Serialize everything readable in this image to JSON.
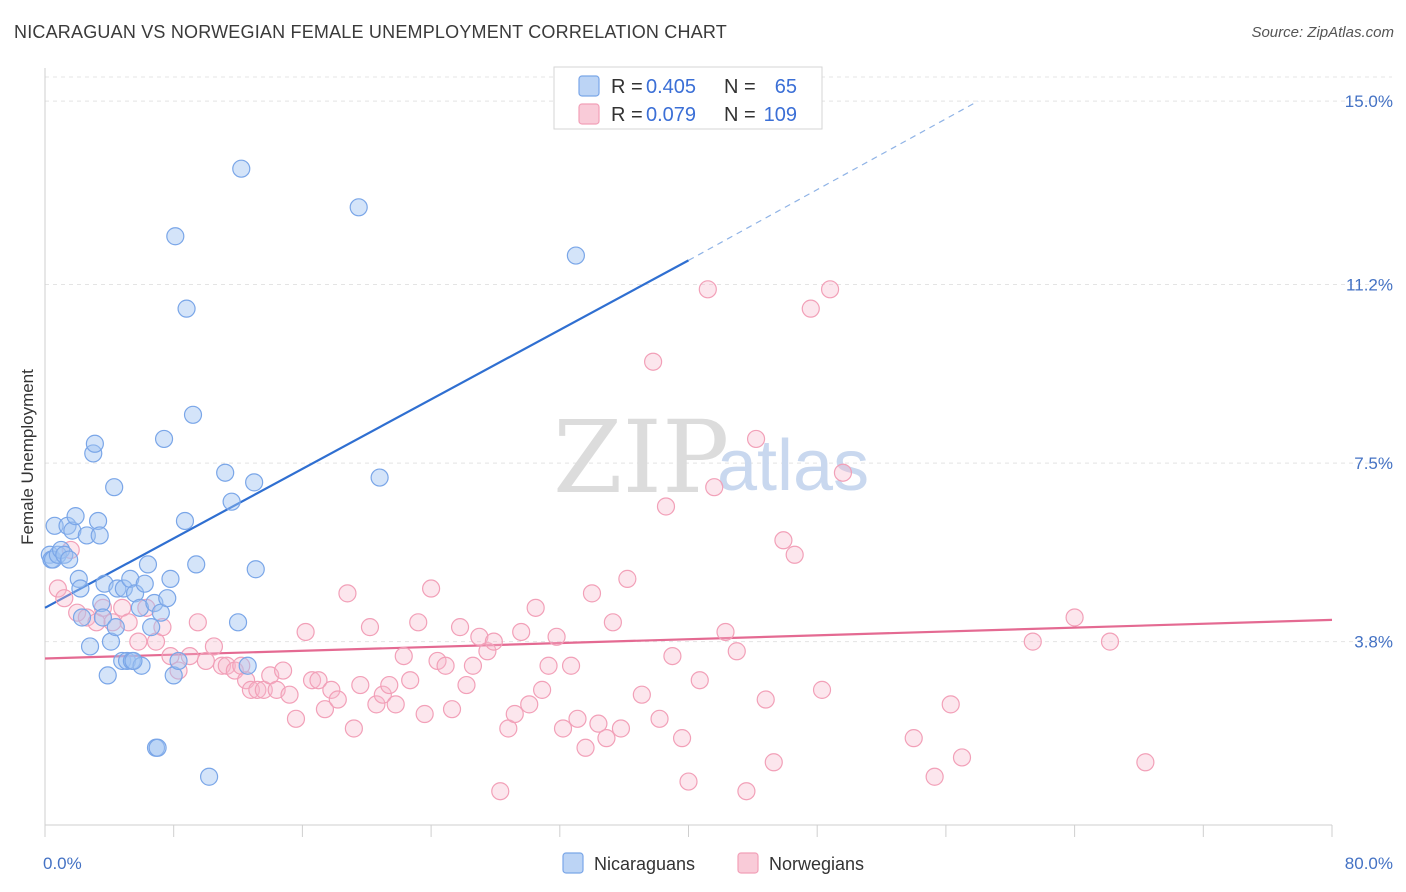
{
  "header": {
    "title": "NICARAGUAN VS NORWEGIAN FEMALE UNEMPLOYMENT CORRELATION CHART",
    "source": "Source: ZipAtlas.com"
  },
  "watermark": {
    "zip": "ZIP",
    "atlas": "atlas"
  },
  "legend": {
    "rows": [
      {
        "r_label": "R = ",
        "r_value": "0.405",
        "n_label": "N = ",
        "n_value": "65",
        "color": "#7aa6e8"
      },
      {
        "r_label": "R = ",
        "r_value": "0.079",
        "n_label": "N = ",
        "n_value": "109",
        "color": "#f2a0b8"
      }
    ]
  },
  "bottom_legend": [
    {
      "label": "Nicaraguans",
      "color": "#7aa6e8"
    },
    {
      "label": "Norwegians",
      "color": "#f2a0b8"
    }
  ],
  "chart_data": {
    "type": "scatter",
    "title": "NICARAGUAN VS NORWEGIAN FEMALE UNEMPLOYMENT CORRELATION CHART",
    "xlabel": "",
    "ylabel": "Female Unemployment",
    "xlim": [
      0,
      80
    ],
    "ylim": [
      0.0,
      15.5
    ],
    "x_tick_labels": [
      "0.0%",
      "80.0%"
    ],
    "y_ticks": [
      3.8,
      7.5,
      11.2,
      15.0
    ],
    "y_tick_labels": [
      "3.8%",
      "7.5%",
      "11.2%",
      "15.0%"
    ],
    "grid": true,
    "legend_position": "top-center",
    "series": [
      {
        "name": "Nicaraguans",
        "color": "#7aa6e8",
        "trend": {
          "x": [
            0,
            40
          ],
          "y": [
            4.5,
            11.7
          ],
          "extended_to": [
            58,
            15.0
          ]
        },
        "points": [
          [
            0.3,
            5.6
          ],
          [
            0.4,
            5.5
          ],
          [
            0.5,
            5.5
          ],
          [
            0.6,
            6.2
          ],
          [
            0.8,
            5.6
          ],
          [
            1.0,
            5.7
          ],
          [
            1.2,
            5.6
          ],
          [
            1.4,
            6.2
          ],
          [
            1.5,
            5.5
          ],
          [
            1.7,
            6.1
          ],
          [
            1.9,
            6.4
          ],
          [
            2.1,
            5.1
          ],
          [
            2.3,
            4.3
          ],
          [
            2.6,
            6.0
          ],
          [
            2.8,
            3.7
          ],
          [
            3.0,
            7.7
          ],
          [
            3.1,
            7.9
          ],
          [
            3.3,
            6.3
          ],
          [
            3.5,
            4.6
          ],
          [
            3.6,
            4.3
          ],
          [
            3.7,
            5.0
          ],
          [
            3.9,
            3.1
          ],
          [
            4.1,
            3.8
          ],
          [
            4.3,
            7.0
          ],
          [
            4.4,
            4.1
          ],
          [
            4.5,
            4.9
          ],
          [
            4.8,
            3.4
          ],
          [
            4.9,
            4.9
          ],
          [
            5.1,
            3.4
          ],
          [
            5.3,
            5.1
          ],
          [
            5.4,
            3.4
          ],
          [
            5.6,
            4.8
          ],
          [
            5.9,
            4.5
          ],
          [
            6.0,
            3.3
          ],
          [
            6.2,
            5.0
          ],
          [
            6.4,
            5.4
          ],
          [
            6.6,
            4.1
          ],
          [
            6.8,
            4.6
          ],
          [
            6.9,
            1.6
          ],
          [
            7.0,
            1.6
          ],
          [
            7.2,
            4.4
          ],
          [
            7.4,
            8.0
          ],
          [
            7.6,
            4.7
          ],
          [
            7.8,
            5.1
          ],
          [
            8.0,
            3.1
          ],
          [
            8.1,
            12.2
          ],
          [
            8.3,
            3.4
          ],
          [
            8.7,
            6.3
          ],
          [
            8.8,
            10.7
          ],
          [
            9.2,
            8.5
          ],
          [
            9.4,
            5.4
          ],
          [
            10.2,
            1.0
          ],
          [
            11.2,
            7.3
          ],
          [
            11.6,
            6.7
          ],
          [
            12.0,
            4.2
          ],
          [
            12.2,
            13.6
          ],
          [
            12.6,
            3.3
          ],
          [
            13.0,
            7.1
          ],
          [
            13.1,
            5.3
          ],
          [
            19.5,
            12.8
          ],
          [
            20.8,
            7.2
          ],
          [
            33.0,
            11.8
          ],
          [
            2.2,
            4.9
          ],
          [
            5.5,
            3.4
          ],
          [
            3.4,
            6.0
          ]
        ]
      },
      {
        "name": "Norwegians",
        "color": "#f2a0b8",
        "trend": {
          "x": [
            0,
            80
          ],
          "y": [
            3.45,
            4.25
          ]
        },
        "points": [
          [
            0.8,
            4.9
          ],
          [
            1.2,
            4.7
          ],
          [
            1.6,
            5.7
          ],
          [
            2.0,
            4.4
          ],
          [
            2.6,
            4.3
          ],
          [
            3.2,
            4.2
          ],
          [
            3.6,
            4.5
          ],
          [
            4.2,
            4.2
          ],
          [
            4.8,
            4.5
          ],
          [
            5.2,
            4.2
          ],
          [
            5.8,
            3.8
          ],
          [
            6.3,
            4.5
          ],
          [
            6.9,
            3.8
          ],
          [
            7.3,
            4.1
          ],
          [
            7.8,
            3.5
          ],
          [
            8.3,
            3.2
          ],
          [
            9.0,
            3.5
          ],
          [
            9.5,
            4.2
          ],
          [
            10.0,
            3.4
          ],
          [
            10.5,
            3.7
          ],
          [
            11.0,
            3.3
          ],
          [
            11.3,
            3.3
          ],
          [
            11.8,
            3.2
          ],
          [
            12.2,
            3.3
          ],
          [
            12.5,
            3.0
          ],
          [
            12.8,
            2.8
          ],
          [
            13.2,
            2.8
          ],
          [
            13.6,
            2.8
          ],
          [
            14.0,
            3.1
          ],
          [
            14.4,
            2.8
          ],
          [
            14.8,
            3.2
          ],
          [
            15.2,
            2.7
          ],
          [
            15.6,
            2.2
          ],
          [
            16.2,
            4.0
          ],
          [
            16.6,
            3.0
          ],
          [
            17.0,
            3.0
          ],
          [
            17.4,
            2.4
          ],
          [
            17.8,
            2.8
          ],
          [
            18.2,
            2.6
          ],
          [
            18.8,
            4.8
          ],
          [
            19.2,
            2.0
          ],
          [
            19.6,
            2.9
          ],
          [
            20.2,
            4.1
          ],
          [
            20.6,
            2.5
          ],
          [
            21.0,
            2.7
          ],
          [
            21.4,
            2.9
          ],
          [
            21.8,
            2.5
          ],
          [
            22.3,
            3.5
          ],
          [
            22.7,
            3.0
          ],
          [
            23.2,
            4.2
          ],
          [
            23.6,
            2.3
          ],
          [
            24.0,
            4.9
          ],
          [
            24.4,
            3.4
          ],
          [
            24.9,
            3.3
          ],
          [
            25.3,
            2.4
          ],
          [
            25.8,
            4.1
          ],
          [
            26.2,
            2.9
          ],
          [
            26.6,
            3.3
          ],
          [
            27.0,
            3.9
          ],
          [
            27.5,
            3.6
          ],
          [
            27.9,
            3.8
          ],
          [
            28.3,
            0.7
          ],
          [
            28.8,
            2.0
          ],
          [
            29.2,
            2.3
          ],
          [
            29.6,
            4.0
          ],
          [
            30.1,
            2.5
          ],
          [
            30.5,
            4.5
          ],
          [
            30.9,
            2.8
          ],
          [
            31.3,
            3.3
          ],
          [
            31.8,
            3.9
          ],
          [
            32.2,
            2.0
          ],
          [
            32.7,
            3.3
          ],
          [
            33.1,
            2.2
          ],
          [
            33.6,
            1.6
          ],
          [
            34.0,
            4.8
          ],
          [
            34.4,
            2.1
          ],
          [
            34.9,
            1.8
          ],
          [
            35.3,
            4.2
          ],
          [
            35.8,
            2.0
          ],
          [
            36.2,
            5.1
          ],
          [
            37.1,
            2.7
          ],
          [
            37.8,
            9.6
          ],
          [
            38.2,
            2.2
          ],
          [
            38.6,
            6.6
          ],
          [
            39.0,
            3.5
          ],
          [
            39.6,
            1.8
          ],
          [
            40.0,
            0.9
          ],
          [
            40.7,
            3.0
          ],
          [
            41.2,
            11.1
          ],
          [
            41.6,
            7.0
          ],
          [
            42.3,
            4.0
          ],
          [
            43.0,
            3.6
          ],
          [
            43.6,
            0.7
          ],
          [
            44.2,
            8.0
          ],
          [
            44.8,
            2.6
          ],
          [
            45.3,
            1.3
          ],
          [
            45.9,
            5.9
          ],
          [
            46.6,
            5.6
          ],
          [
            47.6,
            10.7
          ],
          [
            48.3,
            2.8
          ],
          [
            48.8,
            11.1
          ],
          [
            49.6,
            7.3
          ],
          [
            54.0,
            1.8
          ],
          [
            55.3,
            1.0
          ],
          [
            56.3,
            2.5
          ],
          [
            57.0,
            1.4
          ],
          [
            61.4,
            3.8
          ],
          [
            64.0,
            4.3
          ],
          [
            66.2,
            3.8
          ],
          [
            68.4,
            1.3
          ]
        ]
      }
    ]
  }
}
